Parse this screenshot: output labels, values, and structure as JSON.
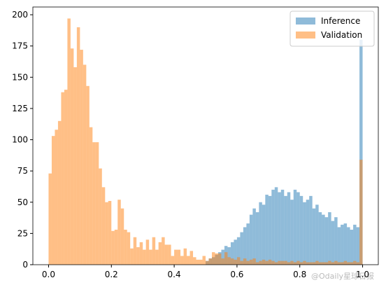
{
  "chart_data": {
    "type": "histogram",
    "xlim": [
      -0.05,
      1.05
    ],
    "ylim": [
      0,
      206.2
    ],
    "xticks": [
      {
        "value": 0,
        "label": "0.0"
      },
      {
        "value": 0.2,
        "label": "0.2"
      },
      {
        "value": 0.4,
        "label": "0.4"
      },
      {
        "value": 0.6,
        "label": "0.6"
      },
      {
        "value": 0.8,
        "label": "0.8"
      },
      {
        "value": 1,
        "label": "1.0"
      }
    ],
    "yticks": [
      0,
      25,
      50,
      75,
      100,
      125,
      150,
      175,
      200
    ],
    "legend": "upper right",
    "grid": false,
    "watermark": "@Odaily星球日报",
    "series": [
      {
        "name": "Inference",
        "color": "#1f77b4",
        "alpha": 0.5,
        "bins": [
          0.5,
          0.51,
          0.52,
          0.53,
          0.54,
          0.55,
          0.56,
          0.57,
          0.58,
          0.59,
          0.6,
          0.61,
          0.62,
          0.63,
          0.64,
          0.65,
          0.66,
          0.67,
          0.68,
          0.69,
          0.7,
          0.71,
          0.72,
          0.73,
          0.74,
          0.75,
          0.76,
          0.77,
          0.78,
          0.79,
          0.8,
          0.81,
          0.82,
          0.83,
          0.84,
          0.85,
          0.86,
          0.87,
          0.88,
          0.89,
          0.9,
          0.91,
          0.92,
          0.93,
          0.94,
          0.95,
          0.96,
          0.97,
          0.98,
          0.99,
          1.0
        ],
        "values": [
          3,
          5,
          6,
          8,
          10,
          12,
          15,
          14,
          18,
          20,
          22,
          26,
          30,
          33,
          40,
          45,
          42,
          50,
          48,
          56,
          55,
          60,
          62,
          58,
          60,
          55,
          58,
          52,
          60,
          58,
          55,
          50,
          52,
          55,
          45,
          48,
          42,
          40,
          38,
          42,
          35,
          38,
          30,
          32,
          33,
          30,
          28,
          32,
          30,
          180
        ]
      },
      {
        "name": "Validation",
        "color": "#ff7f0e",
        "alpha": 0.5,
        "bins": [
          0,
          0.01,
          0.02,
          0.03,
          0.04,
          0.05,
          0.06,
          0.07,
          0.08,
          0.09,
          0.1,
          0.11,
          0.12,
          0.13,
          0.14,
          0.15,
          0.16,
          0.17,
          0.18,
          0.19,
          0.2,
          0.21,
          0.22,
          0.23,
          0.24,
          0.25,
          0.26,
          0.27,
          0.28,
          0.29,
          0.3,
          0.31,
          0.32,
          0.33,
          0.34,
          0.35,
          0.36,
          0.37,
          0.38,
          0.39,
          0.4,
          0.41,
          0.42,
          0.43,
          0.44,
          0.45,
          0.46,
          0.47,
          0.48,
          0.49,
          0.5,
          0.51,
          0.52,
          0.53,
          0.54,
          0.55,
          0.56,
          0.57,
          0.58,
          0.59,
          0.6,
          0.61,
          0.62,
          0.63,
          0.64,
          0.65,
          0.66,
          0.67,
          0.68,
          0.69,
          0.7,
          0.71,
          0.72,
          0.73,
          0.74,
          0.75,
          0.76,
          0.77,
          0.78,
          0.79,
          0.8,
          0.81,
          0.82,
          0.83,
          0.84,
          0.85,
          0.86,
          0.87,
          0.88,
          0.89,
          0.9,
          0.91,
          0.92,
          0.93,
          0.94,
          0.95,
          0.96,
          0.97,
          0.98,
          0.99,
          1.0
        ],
        "values": [
          73,
          103,
          108,
          115,
          138,
          140,
          197,
          173,
          158,
          190,
          172,
          160,
          143,
          110,
          98,
          98,
          77,
          62,
          50,
          51,
          27,
          28,
          52,
          45,
          28,
          26,
          13,
          22,
          14,
          18,
          12,
          20,
          12,
          22,
          12,
          18,
          22,
          16,
          16,
          7,
          12,
          12,
          7,
          13,
          7,
          11,
          6,
          4,
          4,
          7,
          3,
          5,
          10,
          9,
          9,
          5,
          10,
          6,
          5,
          4,
          6,
          3,
          5,
          3,
          4,
          5,
          2,
          3,
          4,
          3,
          4,
          3,
          2,
          3,
          3,
          3,
          2,
          3,
          2,
          3,
          2,
          3,
          2,
          2,
          2,
          3,
          2,
          2,
          2,
          3,
          2,
          3,
          2,
          2,
          3,
          2,
          2,
          3,
          2,
          84
        ]
      }
    ]
  }
}
